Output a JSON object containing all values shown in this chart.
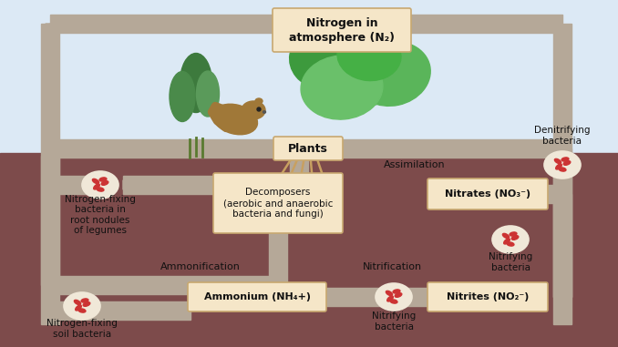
{
  "bg_sky": "#dce9f5",
  "bg_soil": "#7d4b4b",
  "pipe_color": "#b5a898",
  "box_fill": "#f5e6c8",
  "box_edge": "#c8a870",
  "text_dark": "#111111",
  "bacteria_fill": "#f0e8d8",
  "bacteria_stroke": "#c0a080",
  "atm_label": "Nitrogen in\natmosphere (N₂)",
  "plants_label": "Plants",
  "assimilation_label": "Assimilation",
  "denitrifying_label": "Denitrifying\nbacteria",
  "nitrates_label": "Nitrates (NO₃⁻)",
  "nitrifying_top_label": "Nitrifying\nbacteria",
  "nitrites_label": "Nitrites (NO₂⁻)",
  "nitrification_label": "Nitrification",
  "ammonium_label": "Ammonium (NH₄+)",
  "nitrifying_bot_label": "Nitrifying\nbacteria",
  "ammonification_label": "Ammonification",
  "nf_soil_label": "Nitrogen-fixing\nsoil bacteria",
  "nf_root_label": "Nitrogen-fixing\nbacteria in\nroot nodules\nof legumes",
  "decomposers_label": "Decomposers\n(aerobic and anaerobic\nbacteria and fungi)"
}
